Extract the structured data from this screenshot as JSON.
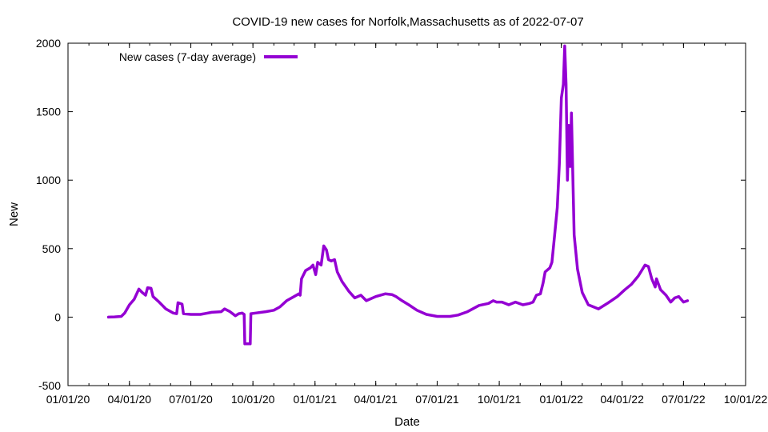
{
  "chart_data": {
    "type": "line",
    "title": "COVID-19 new cases for Norfolk,Massachusetts as of 2022-07-07",
    "xlabel": "Date",
    "ylabel": "New",
    "xlim": [
      "2020-01-01",
      "2022-10-01"
    ],
    "ylim": [
      -500,
      2000
    ],
    "grid": false,
    "legend_position": "top-left",
    "x_ticks": [
      {
        "date": "2020-01-01",
        "label": "01/01/20"
      },
      {
        "date": "2020-04-01",
        "label": "04/01/20"
      },
      {
        "date": "2020-07-01",
        "label": "07/01/20"
      },
      {
        "date": "2020-10-01",
        "label": "10/01/20"
      },
      {
        "date": "2021-01-01",
        "label": "01/01/21"
      },
      {
        "date": "2021-04-01",
        "label": "04/01/21"
      },
      {
        "date": "2021-07-01",
        "label": "07/01/21"
      },
      {
        "date": "2021-10-01",
        "label": "10/01/21"
      },
      {
        "date": "2022-01-01",
        "label": "01/01/22"
      },
      {
        "date": "2022-04-01",
        "label": "04/01/22"
      },
      {
        "date": "2022-07-01",
        "label": "07/01/22"
      },
      {
        "date": "2022-10-01",
        "label": "10/01/22"
      }
    ],
    "y_ticks": [
      {
        "value": -500,
        "label": "-500"
      },
      {
        "value": 0,
        "label": "0"
      },
      {
        "value": 500,
        "label": "500"
      },
      {
        "value": 1000,
        "label": "1000"
      },
      {
        "value": 1500,
        "label": "1500"
      },
      {
        "value": 2000,
        "label": "2000"
      }
    ],
    "series": [
      {
        "name": "New cases (7-day average)",
        "color": "#9400d3",
        "points": [
          [
            "2020-03-01",
            0
          ],
          [
            "2020-03-10",
            2
          ],
          [
            "2020-03-20",
            5
          ],
          [
            "2020-03-25",
            30
          ],
          [
            "2020-04-01",
            90
          ],
          [
            "2020-04-08",
            130
          ],
          [
            "2020-04-15",
            205
          ],
          [
            "2020-04-20",
            180
          ],
          [
            "2020-04-25",
            160
          ],
          [
            "2020-04-28",
            215
          ],
          [
            "2020-05-03",
            210
          ],
          [
            "2020-05-06",
            150
          ],
          [
            "2020-05-15",
            110
          ],
          [
            "2020-05-25",
            60
          ],
          [
            "2020-06-05",
            30
          ],
          [
            "2020-06-10",
            25
          ],
          [
            "2020-06-12",
            105
          ],
          [
            "2020-06-18",
            95
          ],
          [
            "2020-06-20",
            25
          ],
          [
            "2020-07-01",
            20
          ],
          [
            "2020-07-15",
            20
          ],
          [
            "2020-08-01",
            35
          ],
          [
            "2020-08-15",
            40
          ],
          [
            "2020-08-20",
            60
          ],
          [
            "2020-08-28",
            40
          ],
          [
            "2020-09-05",
            10
          ],
          [
            "2020-09-10",
            25
          ],
          [
            "2020-09-15",
            30
          ],
          [
            "2020-09-18",
            20
          ],
          [
            "2020-09-19",
            -195
          ],
          [
            "2020-09-27",
            -195
          ],
          [
            "2020-09-28",
            25
          ],
          [
            "2020-10-05",
            30
          ],
          [
            "2020-10-20",
            40
          ],
          [
            "2020-11-01",
            50
          ],
          [
            "2020-11-10",
            75
          ],
          [
            "2020-11-20",
            120
          ],
          [
            "2020-12-01",
            150
          ],
          [
            "2020-12-08",
            170
          ],
          [
            "2020-12-10",
            160
          ],
          [
            "2020-12-12",
            280
          ],
          [
            "2020-12-18",
            340
          ],
          [
            "2020-12-25",
            360
          ],
          [
            "2020-12-29",
            380
          ],
          [
            "2021-01-02",
            310
          ],
          [
            "2021-01-05",
            400
          ],
          [
            "2021-01-10",
            380
          ],
          [
            "2021-01-14",
            520
          ],
          [
            "2021-01-18",
            490
          ],
          [
            "2021-01-21",
            420
          ],
          [
            "2021-01-25",
            410
          ],
          [
            "2021-01-30",
            420
          ],
          [
            "2021-02-03",
            330
          ],
          [
            "2021-02-10",
            260
          ],
          [
            "2021-02-20",
            190
          ],
          [
            "2021-03-01",
            140
          ],
          [
            "2021-03-10",
            160
          ],
          [
            "2021-03-18",
            120
          ],
          [
            "2021-04-01",
            150
          ],
          [
            "2021-04-15",
            170
          ],
          [
            "2021-04-25",
            165
          ],
          [
            "2021-05-01",
            150
          ],
          [
            "2021-05-10",
            120
          ],
          [
            "2021-05-20",
            90
          ],
          [
            "2021-06-01",
            50
          ],
          [
            "2021-06-15",
            20
          ],
          [
            "2021-07-01",
            5
          ],
          [
            "2021-07-20",
            5
          ],
          [
            "2021-08-01",
            15
          ],
          [
            "2021-08-15",
            40
          ],
          [
            "2021-09-01",
            85
          ],
          [
            "2021-09-15",
            100
          ],
          [
            "2021-09-22",
            120
          ],
          [
            "2021-09-27",
            110
          ],
          [
            "2021-10-05",
            110
          ],
          [
            "2021-10-15",
            90
          ],
          [
            "2021-10-25",
            110
          ],
          [
            "2021-11-05",
            90
          ],
          [
            "2021-11-15",
            100
          ],
          [
            "2021-11-20",
            110
          ],
          [
            "2021-11-25",
            160
          ],
          [
            "2021-12-01",
            170
          ],
          [
            "2021-12-05",
            250
          ],
          [
            "2021-12-08",
            330
          ],
          [
            "2021-12-15",
            360
          ],
          [
            "2021-12-18",
            400
          ],
          [
            "2021-12-22",
            600
          ],
          [
            "2021-12-26",
            800
          ],
          [
            "2021-12-29",
            1120
          ],
          [
            "2022-01-01",
            1600
          ],
          [
            "2022-01-04",
            1700
          ],
          [
            "2022-01-06",
            1980
          ],
          [
            "2022-01-08",
            1700
          ],
          [
            "2022-01-10",
            1000
          ],
          [
            "2022-01-12",
            1400
          ],
          [
            "2022-01-14",
            1100
          ],
          [
            "2022-01-16",
            1490
          ],
          [
            "2022-01-20",
            600
          ],
          [
            "2022-01-25",
            350
          ],
          [
            "2022-02-01",
            180
          ],
          [
            "2022-02-10",
            90
          ],
          [
            "2022-02-25",
            60
          ],
          [
            "2022-03-10",
            100
          ],
          [
            "2022-03-25",
            150
          ],
          [
            "2022-04-05",
            200
          ],
          [
            "2022-04-15",
            240
          ],
          [
            "2022-04-25",
            300
          ],
          [
            "2022-05-05",
            380
          ],
          [
            "2022-05-10",
            370
          ],
          [
            "2022-05-15",
            280
          ],
          [
            "2022-05-20",
            220
          ],
          [
            "2022-05-22",
            280
          ],
          [
            "2022-05-28",
            200
          ],
          [
            "2022-06-05",
            160
          ],
          [
            "2022-06-12",
            110
          ],
          [
            "2022-06-18",
            140
          ],
          [
            "2022-06-24",
            150
          ],
          [
            "2022-07-01",
            110
          ],
          [
            "2022-07-07",
            120
          ]
        ]
      }
    ]
  }
}
